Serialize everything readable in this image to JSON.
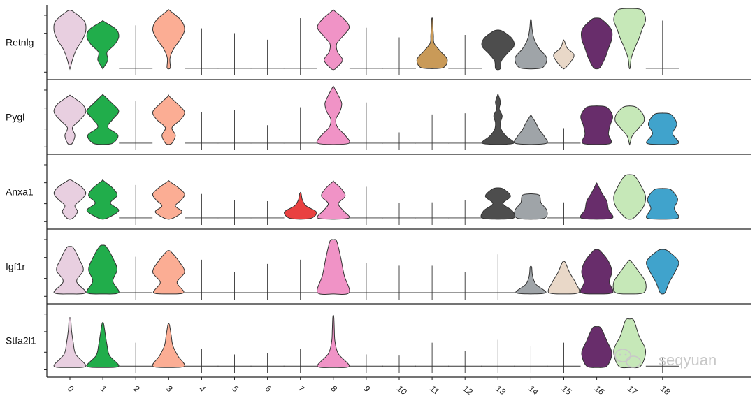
{
  "chart_data": {
    "type": "violin",
    "layout": "stacked",
    "categories": [
      "0",
      "1",
      "2",
      "3",
      "4",
      "5",
      "6",
      "7",
      "8",
      "9",
      "10",
      "11",
      "12",
      "13",
      "14",
      "15",
      "16",
      "17",
      "18"
    ],
    "colors": [
      "#e8cfe0",
      "#21ad4b",
      "#c8c8c8",
      "#fbad94",
      "#d0d0d0",
      "#d0d0d0",
      "#d0d0d0",
      "#e94040",
      "#f093c6",
      "#d0d0d0",
      "#d0d0d0",
      "#c99a58",
      "#d0d0d0",
      "#4d4d4d",
      "#9fa4a8",
      "#e9d8c8",
      "#682d6b",
      "#c6e8b8",
      "#40a3cc"
    ],
    "genes": [
      {
        "name": "Retnlg",
        "violins": [
          {
            "type": "full",
            "lo": 0.08,
            "hi": 0.95,
            "w": [
              0.03,
              0.18,
              0.4,
              0.75,
              0.95,
              0.85,
              0.2
            ]
          },
          {
            "type": "full",
            "lo": 0.1,
            "hi": 0.78,
            "w": [
              0.05,
              0.3,
              0.25,
              0.7,
              0.95,
              0.8,
              0.1
            ]
          },
          {
            "type": "line",
            "lo": 0.0,
            "hi": 0.72
          },
          {
            "type": "full",
            "lo": 0.1,
            "hi": 0.96,
            "w": [
              0.1,
              0.08,
              0.3,
              0.7,
              0.95,
              0.75,
              0.1
            ]
          },
          {
            "type": "line",
            "lo": 0.0,
            "hi": 0.67
          },
          {
            "type": "line",
            "lo": 0.0,
            "hi": 0.59
          },
          {
            "type": "line",
            "lo": 0.2,
            "hi": 0.48
          },
          {
            "type": "line",
            "lo": 0.1,
            "hi": 0.84
          },
          {
            "type": "full",
            "lo": 0.0,
            "hi": 0.96,
            "w": [
              0.15,
              0.55,
              0.25,
              0.2,
              0.6,
              0.95,
              0.65,
              0.08
            ]
          },
          {
            "type": "line",
            "lo": 0.2,
            "hi": 0.68
          },
          {
            "type": "line",
            "lo": 0.1,
            "hi": 0.52
          },
          {
            "type": "full",
            "lo": 0.12,
            "hi": 0.82,
            "w": [
              0.7,
              0.9,
              0.5,
              0.12,
              0.08,
              0.05,
              0.03
            ]
          },
          {
            "type": "line",
            "lo": 0.1,
            "hi": 0.56
          },
          {
            "type": "full",
            "lo": 0.0,
            "hi": 0.62,
            "w": [
              0.15,
              0.2,
              0.55,
              0.95,
              0.85,
              0.3
            ]
          },
          {
            "type": "full",
            "lo": 0.1,
            "hi": 0.8,
            "w": [
              0.7,
              0.95,
              0.5,
              0.2,
              0.08,
              0.03
            ]
          },
          {
            "type": "full",
            "lo": 0.1,
            "hi": 0.45,
            "w": [
              0.12,
              0.45,
              0.6,
              0.2,
              0.05
            ]
          },
          {
            "type": "full",
            "lo": 0.1,
            "hi": 0.82,
            "w": [
              0.2,
              0.5,
              0.7,
              0.9,
              0.85,
              0.3
            ]
          },
          {
            "type": "full",
            "lo": 0.1,
            "hi": 0.98,
            "w": [
              0.03,
              0.1,
              0.3,
              0.55,
              0.75,
              0.95,
              0.7
            ]
          },
          {
            "type": "line",
            "lo": 0.1,
            "hi": 0.8
          }
        ]
      },
      {
        "name": "Pygl",
        "violins": [
          {
            "type": "full",
            "lo": 0.0,
            "hi": 0.78,
            "w": [
              0.15,
              0.3,
              0.15,
              0.6,
              0.95,
              0.75,
              0.12
            ]
          },
          {
            "type": "full",
            "lo": 0.0,
            "hi": 0.8,
            "w": [
              0.6,
              0.9,
              0.3,
              0.6,
              0.95,
              0.55,
              0.05
            ]
          },
          {
            "type": "line",
            "lo": 0.0,
            "hi": 0.7
          },
          {
            "type": "full",
            "lo": 0.0,
            "hi": 0.78,
            "w": [
              0.2,
              0.4,
              0.2,
              0.7,
              0.95,
              0.55,
              0.05
            ]
          },
          {
            "type": "line",
            "lo": 0.0,
            "hi": 0.52
          },
          {
            "type": "line",
            "lo": 0.0,
            "hi": 0.55
          },
          {
            "type": "line",
            "lo": 0.1,
            "hi": 0.3
          },
          {
            "type": "line",
            "lo": 0.0,
            "hi": 0.6
          },
          {
            "type": "full",
            "lo": 0.0,
            "hi": 0.93,
            "w": [
              0.95,
              0.7,
              0.25,
              0.15,
              0.4,
              0.5,
              0.3,
              0.05
            ]
          },
          {
            "type": "line",
            "lo": 0.0,
            "hi": 0.68
          },
          {
            "type": "line",
            "lo": 0.0,
            "hi": 0.18
          },
          {
            "type": "line",
            "lo": 0.0,
            "hi": 0.48
          },
          {
            "type": "line",
            "lo": 0.0,
            "hi": 0.5
          },
          {
            "type": "full",
            "lo": 0.0,
            "hi": 0.8,
            "w": [
              0.95,
              0.5,
              0.2,
              0.15,
              0.25,
              0.08,
              0.15,
              0.03
            ]
          },
          {
            "type": "full",
            "lo": 0.0,
            "hi": 0.45,
            "w": [
              0.95,
              0.8,
              0.5,
              0.3,
              0.05
            ]
          },
          {
            "type": "line",
            "lo": 0.1,
            "hi": 0.25
          },
          {
            "type": "full",
            "lo": 0.0,
            "hi": 0.6,
            "w": [
              0.85,
              0.7,
              0.8,
              0.95,
              0.6
            ]
          },
          {
            "type": "full",
            "lo": 0.0,
            "hi": 0.6,
            "w": [
              0.03,
              0.15,
              0.5,
              0.85,
              0.8,
              0.4
            ]
          },
          {
            "type": "full",
            "lo": 0.0,
            "hi": 0.48,
            "w": [
              0.95,
              0.6,
              0.85,
              0.5
            ]
          }
        ]
      },
      {
        "name": "Anxa1",
        "violins": [
          {
            "type": "full",
            "lo": 0.0,
            "hi": 0.62,
            "w": [
              0.2,
              0.45,
              0.3,
              0.7,
              0.95,
              0.7,
              0.15
            ]
          },
          {
            "type": "full",
            "lo": 0.0,
            "hi": 0.62,
            "w": [
              0.3,
              0.95,
              0.45,
              0.85,
              0.6,
              0.05
            ]
          },
          {
            "type": "line",
            "lo": 0.0,
            "hi": 0.55
          },
          {
            "type": "full",
            "lo": 0.0,
            "hi": 0.6,
            "w": [
              0.3,
              0.8,
              0.4,
              0.75,
              0.95,
              0.6,
              0.1
            ]
          },
          {
            "type": "line",
            "lo": 0.0,
            "hi": 0.4
          },
          {
            "type": "line",
            "lo": 0.0,
            "hi": 0.3
          },
          {
            "type": "line",
            "lo": 0.0,
            "hi": 0.28
          },
          {
            "type": "full",
            "lo": 0.0,
            "hi": 0.4,
            "w": [
              0.7,
              0.95,
              0.35,
              0.12,
              0.05
            ]
          },
          {
            "type": "full",
            "lo": 0.0,
            "hi": 0.6,
            "w": [
              0.95,
              0.6,
              0.3,
              0.7,
              0.5,
              0.05
            ]
          },
          {
            "type": "line",
            "lo": 0.0,
            "hi": 0.52
          },
          {
            "type": "line",
            "lo": 0.0,
            "hi": 0.25
          },
          {
            "type": "line",
            "lo": 0.0,
            "hi": 0.26
          },
          {
            "type": "line",
            "lo": 0.0,
            "hi": 0.3
          },
          {
            "type": "full",
            "lo": 0.0,
            "hi": 0.48,
            "w": [
              0.95,
              0.85,
              0.3,
              0.75,
              0.35
            ]
          },
          {
            "type": "full",
            "lo": 0.0,
            "hi": 0.38,
            "w": [
              0.85,
              0.95,
              0.6,
              0.5
            ]
          },
          {
            "type": "line",
            "lo": 0.0,
            "hi": 0.26
          },
          {
            "type": "full",
            "lo": 0.0,
            "hi": 0.56,
            "w": [
              0.95,
              0.7,
              0.6,
              0.3,
              0.05
            ]
          },
          {
            "type": "full",
            "lo": 0.0,
            "hi": 0.7,
            "w": [
              0.25,
              0.8,
              0.95,
              0.7,
              0.3
            ]
          },
          {
            "type": "full",
            "lo": 0.0,
            "hi": 0.47,
            "w": [
              0.95,
              0.7,
              0.9,
              0.5
            ]
          }
        ]
      },
      {
        "name": "Igf1r",
        "violins": [
          {
            "type": "full",
            "lo": 0.0,
            "hi": 0.75,
            "w": [
              0.95,
              0.4,
              0.8,
              0.55,
              0.2
            ]
          },
          {
            "type": "full",
            "lo": 0.0,
            "hi": 0.77,
            "w": [
              0.95,
              0.6,
              0.85,
              0.6,
              0.2
            ]
          },
          {
            "type": "line",
            "lo": 0.0,
            "hi": 0.6
          },
          {
            "type": "full",
            "lo": 0.0,
            "hi": 0.68,
            "w": [
              0.9,
              0.5,
              0.95,
              0.65,
              0.15
            ]
          },
          {
            "type": "line",
            "lo": 0.0,
            "hi": 0.55
          },
          {
            "type": "line",
            "lo": 0.0,
            "hi": 0.35
          },
          {
            "type": "line",
            "lo": 0.0,
            "hi": 0.48
          },
          {
            "type": "line",
            "lo": 0.0,
            "hi": 0.55
          },
          {
            "type": "full",
            "lo": 0.0,
            "hi": 0.86,
            "w": [
              0.95,
              0.65,
              0.45,
              0.2
            ]
          },
          {
            "type": "line",
            "lo": 0.0,
            "hi": 0.5
          },
          {
            "type": "line",
            "lo": 0.0,
            "hi": 0.45
          },
          {
            "type": "line",
            "lo": 0.0,
            "hi": 0.45
          },
          {
            "type": "line",
            "lo": 0.0,
            "hi": 0.35
          },
          {
            "type": "line",
            "lo": 0.0,
            "hi": 0.64
          },
          {
            "type": "full",
            "lo": 0.0,
            "hi": 0.42,
            "w": [
              0.9,
              0.3,
              0.1,
              0.05
            ]
          },
          {
            "type": "full",
            "lo": 0.0,
            "hi": 0.5,
            "w": [
              0.9,
              0.7,
              0.35,
              0.1
            ]
          },
          {
            "type": "full",
            "lo": 0.0,
            "hi": 0.7,
            "w": [
              0.95,
              0.75,
              0.9,
              0.7,
              0.2
            ]
          },
          {
            "type": "full",
            "lo": 0.0,
            "hi": 0.52,
            "w": [
              0.85,
              0.95,
              0.55,
              0.1
            ]
          },
          {
            "type": "full",
            "lo": 0.0,
            "hi": 0.7,
            "w": [
              0.15,
              0.4,
              0.75,
              0.95,
              0.3
            ]
          }
        ]
      },
      {
        "name": "Stfa2l1",
        "violins": [
          {
            "type": "full",
            "lo": 0.0,
            "hi": 0.8,
            "w": [
              0.95,
              0.35,
              0.2,
              0.1,
              0.05
            ]
          },
          {
            "type": "full",
            "lo": 0.0,
            "hi": 0.72,
            "w": [
              0.95,
              0.4,
              0.25,
              0.15,
              0.05
            ]
          },
          {
            "type": "line",
            "lo": 0.0,
            "hi": 0.4
          },
          {
            "type": "full",
            "lo": 0.0,
            "hi": 0.7,
            "w": [
              0.95,
              0.55,
              0.25,
              0.15,
              0.05
            ]
          },
          {
            "type": "line",
            "lo": 0.0,
            "hi": 0.3
          },
          {
            "type": "line",
            "lo": 0.0,
            "hi": 0.2
          },
          {
            "type": "line",
            "lo": 0.0,
            "hi": 0.22
          },
          {
            "type": "line",
            "lo": 0.0,
            "hi": 0.3
          },
          {
            "type": "full",
            "lo": 0.0,
            "hi": 0.84,
            "w": [
              0.95,
              0.3,
              0.1,
              0.06,
              0.03
            ]
          },
          {
            "type": "line",
            "lo": 0.0,
            "hi": 0.2
          },
          {
            "type": "line",
            "lo": 0.0,
            "hi": 0.18
          },
          {
            "type": "line",
            "lo": 0.0,
            "hi": 0.4
          },
          {
            "type": "line",
            "lo": 0.0,
            "hi": 0.26
          },
          {
            "type": "line",
            "lo": 0.0,
            "hi": 0.45
          },
          {
            "type": "line",
            "lo": 0.0,
            "hi": 0.35
          },
          {
            "type": "line",
            "lo": 0.0,
            "hi": 0.4
          },
          {
            "type": "full",
            "lo": 0.0,
            "hi": 0.65,
            "w": [
              0.6,
              0.9,
              0.6,
              0.25
            ]
          },
          {
            "type": "full",
            "lo": 0.0,
            "hi": 0.78,
            "w": [
              0.65,
              0.95,
              0.55,
              0.25
            ]
          },
          {
            "type": "line",
            "lo": 0.0,
            "hi": 0.15
          }
        ]
      }
    ],
    "grid": false,
    "legend": "none"
  },
  "watermark": {
    "text": "seqyuan",
    "icon": "wechat-icon"
  }
}
